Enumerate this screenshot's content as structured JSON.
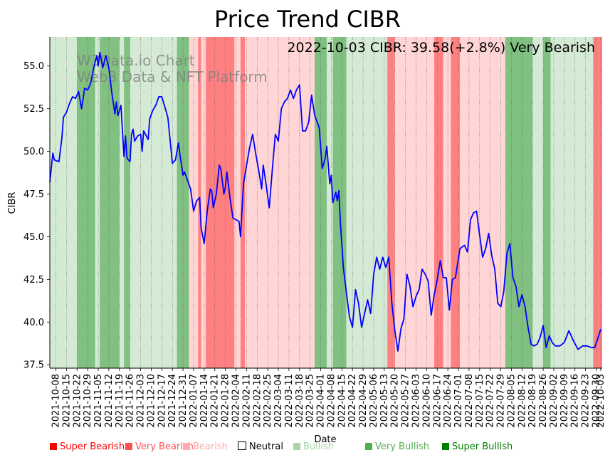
{
  "chart_data": {
    "type": "line",
    "title": "Price Trend CIBR",
    "annotation": "2022-10-03 CIBR: 39.58(+2.8%) Very Bearish",
    "watermark": [
      "W3Data.io Chart",
      "Web3 Data & NFT Platform"
    ],
    "xlabel": "Date",
    "ylabel": "CIBR",
    "ylim": [
      37.3,
      56.7
    ],
    "yticks": [
      37.5,
      40.0,
      42.5,
      45.0,
      47.5,
      50.0,
      52.5,
      55.0
    ],
    "x_start": "2021-10-04",
    "x_end": "2022-10-04",
    "xtick_labels": [
      "2021-10-08",
      "2021-10-15",
      "2021-10-22",
      "2021-10-29",
      "2021-11-05",
      "2021-11-12",
      "2021-11-19",
      "2021-11-26",
      "2021-12-03",
      "2021-12-10",
      "2021-12-17",
      "2021-12-24",
      "2021-12-31",
      "2022-01-07",
      "2022-01-14",
      "2022-01-21",
      "2022-01-28",
      "2022-02-04",
      "2022-02-11",
      "2022-02-18",
      "2022-02-25",
      "2022-03-04",
      "2022-03-11",
      "2022-03-18",
      "2022-03-25",
      "2022-04-01",
      "2022-04-08",
      "2022-04-15",
      "2022-04-22",
      "2022-04-29",
      "2022-05-06",
      "2022-05-13",
      "2022-05-20",
      "2022-05-27",
      "2022-06-03",
      "2022-06-10",
      "2022-06-17",
      "2022-06-24",
      "2022-07-01",
      "2022-07-08",
      "2022-07-15",
      "2022-07-22",
      "2022-07-29",
      "2022-08-05",
      "2022-08-12",
      "2022-08-19",
      "2022-08-26",
      "2022-09-02",
      "2022-09-09",
      "2022-09-16",
      "2022-09-23",
      "2022-09-30",
      "2022-10-03"
    ],
    "regimes": [
      {
        "start": "2021-10-04",
        "end": "2021-10-22",
        "label": "Bullish"
      },
      {
        "start": "2021-10-22",
        "end": "2021-11-03",
        "label": "Very Bullish"
      },
      {
        "start": "2021-11-03",
        "end": "2021-11-06",
        "label": "Bullish"
      },
      {
        "start": "2021-11-06",
        "end": "2021-11-19",
        "label": "Very Bullish"
      },
      {
        "start": "2021-11-19",
        "end": "2021-11-22",
        "label": "Bullish"
      },
      {
        "start": "2021-11-22",
        "end": "2021-11-26",
        "label": "Very Bullish"
      },
      {
        "start": "2021-11-26",
        "end": "2021-12-27",
        "label": "Bullish"
      },
      {
        "start": "2021-12-27",
        "end": "2022-01-04",
        "label": "Very Bullish"
      },
      {
        "start": "2022-01-04",
        "end": "2022-01-10",
        "label": "Bearish"
      },
      {
        "start": "2022-01-10",
        "end": "2022-01-12",
        "label": "Very Bearish"
      },
      {
        "start": "2022-01-12",
        "end": "2022-01-15",
        "label": "Bearish"
      },
      {
        "start": "2022-01-15",
        "end": "2022-02-03",
        "label": "Very Bearish"
      },
      {
        "start": "2022-02-03",
        "end": "2022-02-07",
        "label": "Bearish"
      },
      {
        "start": "2022-02-07",
        "end": "2022-02-10",
        "label": "Very Bearish"
      },
      {
        "start": "2022-02-10",
        "end": "2022-03-28",
        "label": "Bearish"
      },
      {
        "start": "2022-03-28",
        "end": "2022-04-05",
        "label": "Very Bullish"
      },
      {
        "start": "2022-04-05",
        "end": "2022-04-09",
        "label": "Bullish"
      },
      {
        "start": "2022-04-09",
        "end": "2022-04-18",
        "label": "Very Bullish"
      },
      {
        "start": "2022-04-18",
        "end": "2022-05-15",
        "label": "Bullish"
      },
      {
        "start": "2022-05-15",
        "end": "2022-05-20",
        "label": "Very Bearish"
      },
      {
        "start": "2022-05-20",
        "end": "2022-06-15",
        "label": "Bearish"
      },
      {
        "start": "2022-06-15",
        "end": "2022-06-21",
        "label": "Very Bearish"
      },
      {
        "start": "2022-06-21",
        "end": "2022-06-26",
        "label": "Bearish"
      },
      {
        "start": "2022-06-26",
        "end": "2022-07-02",
        "label": "Very Bearish"
      },
      {
        "start": "2022-07-02",
        "end": "2022-08-01",
        "label": "Bearish"
      },
      {
        "start": "2022-08-01",
        "end": "2022-08-19",
        "label": "Very Bullish"
      },
      {
        "start": "2022-08-19",
        "end": "2022-08-26",
        "label": "Bullish"
      },
      {
        "start": "2022-08-26",
        "end": "2022-08-31",
        "label": "Very Bullish"
      },
      {
        "start": "2022-08-31",
        "end": "2022-09-28",
        "label": "Bullish"
      },
      {
        "start": "2022-09-28",
        "end": "2022-10-04",
        "label": "Very Bearish"
      }
    ],
    "series": [
      {
        "name": "CIBR",
        "points": [
          [
            "2021-10-04",
            48.2
          ],
          [
            "2021-10-06",
            49.9
          ],
          [
            "2021-10-07",
            49.5
          ],
          [
            "2021-10-10",
            49.4
          ],
          [
            "2021-10-12",
            50.8
          ],
          [
            "2021-10-13",
            52.0
          ],
          [
            "2021-10-15",
            52.3
          ],
          [
            "2021-10-17",
            52.8
          ],
          [
            "2021-10-19",
            53.2
          ],
          [
            "2021-10-21",
            53.1
          ],
          [
            "2021-10-23",
            53.5
          ],
          [
            "2021-10-25",
            52.5
          ],
          [
            "2021-10-27",
            53.7
          ],
          [
            "2021-10-29",
            53.6
          ],
          [
            "2021-10-31",
            54.0
          ],
          [
            "2021-11-02",
            54.9
          ],
          [
            "2021-11-04",
            55.6
          ],
          [
            "2021-11-05",
            55.0
          ],
          [
            "2021-11-06",
            55.8
          ],
          [
            "2021-11-08",
            54.9
          ],
          [
            "2021-11-10",
            55.6
          ],
          [
            "2021-11-12",
            54.9
          ],
          [
            "2021-11-14",
            53.4
          ],
          [
            "2021-11-16",
            52.2
          ],
          [
            "2021-11-17",
            52.9
          ],
          [
            "2021-11-18",
            52.1
          ],
          [
            "2021-11-20",
            52.7
          ],
          [
            "2021-11-22",
            49.7
          ],
          [
            "2021-11-23",
            50.9
          ],
          [
            "2021-11-24",
            49.6
          ],
          [
            "2021-11-26",
            49.4
          ],
          [
            "2021-11-27",
            51.0
          ],
          [
            "2021-11-28",
            51.3
          ],
          [
            "2021-11-29",
            50.6
          ],
          [
            "2021-12-01",
            50.9
          ],
          [
            "2021-12-03",
            51.0
          ],
          [
            "2021-12-04",
            50.0
          ],
          [
            "2021-12-05",
            51.2
          ],
          [
            "2021-12-08",
            50.7
          ],
          [
            "2021-12-09",
            51.9
          ],
          [
            "2021-12-11",
            52.4
          ],
          [
            "2021-12-13",
            52.7
          ],
          [
            "2021-12-15",
            53.2
          ],
          [
            "2021-12-17",
            53.2
          ],
          [
            "2021-12-19",
            52.6
          ],
          [
            "2021-12-21",
            52.0
          ],
          [
            "2021-12-24",
            49.3
          ],
          [
            "2021-12-26",
            49.5
          ],
          [
            "2021-12-28",
            50.5
          ],
          [
            "2021-12-29",
            49.8
          ],
          [
            "2021-12-31",
            48.6
          ],
          [
            "2022-01-01",
            48.8
          ],
          [
            "2022-01-03",
            48.3
          ],
          [
            "2022-01-05",
            47.8
          ],
          [
            "2022-01-07",
            46.5
          ],
          [
            "2022-01-09",
            47.1
          ],
          [
            "2022-01-11",
            47.3
          ],
          [
            "2022-01-12",
            45.5
          ],
          [
            "2022-01-14",
            44.6
          ],
          [
            "2022-01-16",
            46.5
          ],
          [
            "2022-01-18",
            47.8
          ],
          [
            "2022-01-19",
            47.7
          ],
          [
            "2022-01-20",
            46.7
          ],
          [
            "2022-01-22",
            47.5
          ],
          [
            "2022-01-24",
            49.2
          ],
          [
            "2022-01-25",
            49.0
          ],
          [
            "2022-01-27",
            47.5
          ],
          [
            "2022-01-28",
            47.9
          ],
          [
            "2022-01-29",
            48.8
          ],
          [
            "2022-01-31",
            47.3
          ],
          [
            "2022-02-02",
            46.1
          ],
          [
            "2022-02-04",
            46.0
          ],
          [
            "2022-02-06",
            45.9
          ],
          [
            "2022-02-07",
            45.0
          ],
          [
            "2022-02-09",
            48.1
          ],
          [
            "2022-02-11",
            49.2
          ],
          [
            "2022-02-13",
            50.2
          ],
          [
            "2022-02-15",
            51.0
          ],
          [
            "2022-02-17",
            49.9
          ],
          [
            "2022-02-19",
            48.9
          ],
          [
            "2022-02-21",
            47.8
          ],
          [
            "2022-02-22",
            49.2
          ],
          [
            "2022-02-24",
            48.0
          ],
          [
            "2022-02-26",
            46.7
          ],
          [
            "2022-02-28",
            48.9
          ],
          [
            "2022-03-02",
            51.0
          ],
          [
            "2022-03-04",
            50.6
          ],
          [
            "2022-03-06",
            52.5
          ],
          [
            "2022-03-08",
            52.9
          ],
          [
            "2022-03-10",
            53.1
          ],
          [
            "2022-03-12",
            53.6
          ],
          [
            "2022-03-14",
            53.1
          ],
          [
            "2022-03-16",
            53.6
          ],
          [
            "2022-03-18",
            53.9
          ],
          [
            "2022-03-20",
            51.2
          ],
          [
            "2022-03-22",
            51.2
          ],
          [
            "2022-03-24",
            51.7
          ],
          [
            "2022-03-26",
            53.3
          ],
          [
            "2022-03-28",
            52.1
          ],
          [
            "2022-03-31",
            51.4
          ],
          [
            "2022-04-02",
            49.0
          ],
          [
            "2022-04-04",
            49.6
          ],
          [
            "2022-04-05",
            50.3
          ],
          [
            "2022-04-07",
            48.1
          ],
          [
            "2022-04-08",
            48.6
          ],
          [
            "2022-04-09",
            47.0
          ],
          [
            "2022-04-11",
            47.6
          ],
          [
            "2022-04-12",
            47.1
          ],
          [
            "2022-04-13",
            47.7
          ],
          [
            "2022-04-14",
            45.8
          ],
          [
            "2022-04-16",
            43.2
          ],
          [
            "2022-04-18",
            41.7
          ],
          [
            "2022-04-20",
            40.3
          ],
          [
            "2022-04-22",
            39.7
          ],
          [
            "2022-04-24",
            41.9
          ],
          [
            "2022-04-26",
            41.1
          ],
          [
            "2022-04-28",
            39.7
          ],
          [
            "2022-04-30",
            40.5
          ],
          [
            "2022-05-02",
            41.3
          ],
          [
            "2022-05-04",
            40.5
          ],
          [
            "2022-05-06",
            42.8
          ],
          [
            "2022-05-08",
            43.8
          ],
          [
            "2022-05-10",
            43.1
          ],
          [
            "2022-05-12",
            43.8
          ],
          [
            "2022-05-14",
            43.2
          ],
          [
            "2022-05-16",
            43.8
          ],
          [
            "2022-05-18",
            41.1
          ],
          [
            "2022-05-20",
            39.5
          ],
          [
            "2022-05-22",
            38.3
          ],
          [
            "2022-05-24",
            39.6
          ],
          [
            "2022-05-26",
            40.2
          ],
          [
            "2022-05-28",
            42.8
          ],
          [
            "2022-05-30",
            42.1
          ],
          [
            "2022-06-01",
            40.9
          ],
          [
            "2022-06-03",
            41.5
          ],
          [
            "2022-06-05",
            41.9
          ],
          [
            "2022-06-07",
            43.1
          ],
          [
            "2022-06-09",
            42.8
          ],
          [
            "2022-06-11",
            42.4
          ],
          [
            "2022-06-13",
            40.4
          ],
          [
            "2022-06-15",
            41.6
          ],
          [
            "2022-06-17",
            42.5
          ],
          [
            "2022-06-19",
            43.6
          ],
          [
            "2022-06-21",
            42.6
          ],
          [
            "2022-06-23",
            42.6
          ],
          [
            "2022-06-25",
            40.7
          ],
          [
            "2022-06-27",
            42.5
          ],
          [
            "2022-06-29",
            42.6
          ],
          [
            "2022-07-02",
            44.3
          ],
          [
            "2022-07-05",
            44.5
          ],
          [
            "2022-07-07",
            44.1
          ],
          [
            "2022-07-09",
            46.0
          ],
          [
            "2022-07-11",
            46.4
          ],
          [
            "2022-07-13",
            46.5
          ],
          [
            "2022-07-15",
            45.1
          ],
          [
            "2022-07-17",
            43.8
          ],
          [
            "2022-07-19",
            44.3
          ],
          [
            "2022-07-21",
            45.2
          ],
          [
            "2022-07-23",
            43.9
          ],
          [
            "2022-07-25",
            43.1
          ],
          [
            "2022-07-27",
            41.1
          ],
          [
            "2022-07-29",
            40.9
          ],
          [
            "2022-07-31",
            41.8
          ],
          [
            "2022-08-02",
            44.0
          ],
          [
            "2022-08-04",
            44.6
          ],
          [
            "2022-08-06",
            42.6
          ],
          [
            "2022-08-08",
            42.1
          ],
          [
            "2022-08-10",
            40.9
          ],
          [
            "2022-08-12",
            41.6
          ],
          [
            "2022-08-14",
            40.9
          ],
          [
            "2022-08-16",
            39.7
          ],
          [
            "2022-08-18",
            38.7
          ],
          [
            "2022-08-20",
            38.6
          ],
          [
            "2022-08-22",
            38.7
          ],
          [
            "2022-08-24",
            39.1
          ],
          [
            "2022-08-26",
            39.8
          ],
          [
            "2022-08-28",
            38.5
          ],
          [
            "2022-08-30",
            39.2
          ],
          [
            "2022-09-01",
            38.8
          ],
          [
            "2022-09-03",
            38.6
          ],
          [
            "2022-09-06",
            38.6
          ],
          [
            "2022-09-09",
            38.8
          ],
          [
            "2022-09-12",
            39.5
          ],
          [
            "2022-09-15",
            38.9
          ],
          [
            "2022-09-18",
            38.4
          ],
          [
            "2022-09-21",
            38.6
          ],
          [
            "2022-09-24",
            38.6
          ],
          [
            "2022-09-27",
            38.5
          ],
          [
            "2022-09-29",
            38.5
          ],
          [
            "2022-10-01",
            39.0
          ],
          [
            "2022-10-03",
            39.58
          ]
        ]
      }
    ],
    "colors": {
      "line": "#0000ff",
      "super_bearish": "#ff0000",
      "very_bearish": "#ff8080",
      "bearish": "#ffd5d5",
      "neutral": "#ffffff",
      "bullish": "#d5ead5",
      "very_bullish": "#80c080",
      "super_bullish": "#008000"
    },
    "legend": [
      {
        "label": "Super Bearish",
        "swatch": "#ff0000",
        "text_color": "#ff0000"
      },
      {
        "label": "Very Bearish",
        "swatch": "#ff5050",
        "text_color": "#ff5050"
      },
      {
        "label": "Bearish",
        "swatch": "#ffaaaa",
        "text_color": "#ffaaaa"
      },
      {
        "label": "Neutral",
        "swatch": "#ffffff",
        "text_color": "#000000"
      },
      {
        "label": "Bullish",
        "swatch": "#a8d4a8",
        "text_color": "#a8d4a8"
      },
      {
        "label": "Very Bullish",
        "swatch": "#50b050",
        "text_color": "#50b050"
      },
      {
        "label": "Super Bullish",
        "swatch": "#008000",
        "text_color": "#008000"
      }
    ]
  }
}
